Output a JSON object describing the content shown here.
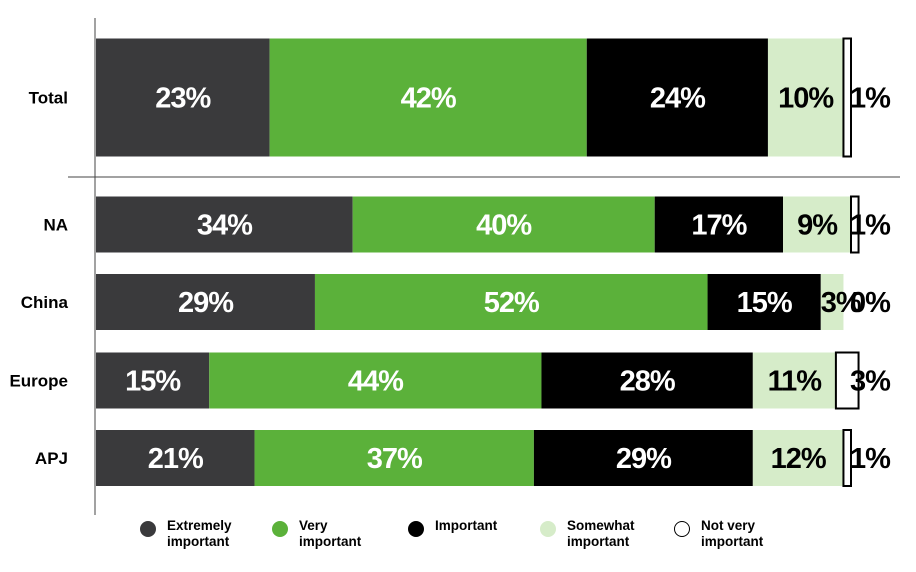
{
  "chart_data": {
    "type": "bar",
    "orientation": "horizontal-stacked-100",
    "categories": [
      "Total",
      "NA",
      "China",
      "Europe",
      "APJ"
    ],
    "series": [
      {
        "name": "Extremely important",
        "color": "#3a3a3c",
        "label_color": "#ffffff",
        "values": [
          23,
          34,
          29,
          15,
          21
        ],
        "labels": [
          "23%",
          "34%",
          "29%",
          "15%",
          "21%"
        ]
      },
      {
        "name": "Very important",
        "color": "#5bb13a",
        "label_color": "#ffffff",
        "values": [
          42,
          40,
          52,
          44,
          37
        ],
        "labels": [
          "42%",
          "40%",
          "52%",
          "44%",
          "37%"
        ]
      },
      {
        "name": "Important",
        "color": "#000000",
        "label_color": "#ffffff",
        "values": [
          24,
          17,
          15,
          28,
          29
        ],
        "labels": [
          "24%",
          "17%",
          "15%",
          "28%",
          "29%"
        ]
      },
      {
        "name": "Somewhat important",
        "color": "#d6ecc9",
        "label_color": "#000000",
        "values": [
          10,
          9,
          3,
          11,
          12
        ],
        "labels": [
          "10%",
          "9%",
          "3%",
          "11%",
          "12%"
        ]
      },
      {
        "name": "Not very important",
        "color": "#ffffff",
        "label_color": "#000000",
        "values": [
          1,
          1,
          0,
          3,
          1
        ],
        "labels": [
          "1%",
          "1%",
          "0%",
          "3%",
          "1%"
        ]
      }
    ],
    "legend": {
      "position": "bottom",
      "items": [
        {
          "label": "Extremely important",
          "color": "#3a3a3c"
        },
        {
          "label": "Very important",
          "color": "#5bb13a"
        },
        {
          "label": "Important",
          "color": "#000000"
        },
        {
          "label": "Somewhat important",
          "color": "#d6ecc9"
        },
        {
          "label": "Not very important",
          "color": "#ffffff"
        }
      ]
    }
  }
}
